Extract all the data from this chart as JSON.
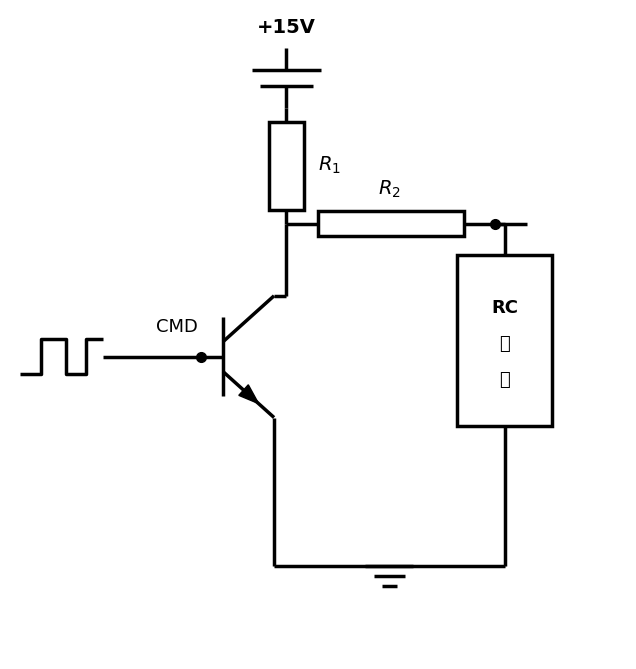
{
  "bg_color": "#ffffff",
  "line_color": "#000000",
  "line_width": 2.5,
  "fig_width": 6.36,
  "fig_height": 6.69,
  "voltage_label": "+15V",
  "r1_label": "$R_1$",
  "r2_label": "$R_2$",
  "rc_label_line1": "RC",
  "rc_label_line2": "网",
  "rc_label_line3": "络",
  "cmd_label": "CMD",
  "xlim": [
    0,
    10
  ],
  "ylim": [
    0,
    10.5
  ]
}
